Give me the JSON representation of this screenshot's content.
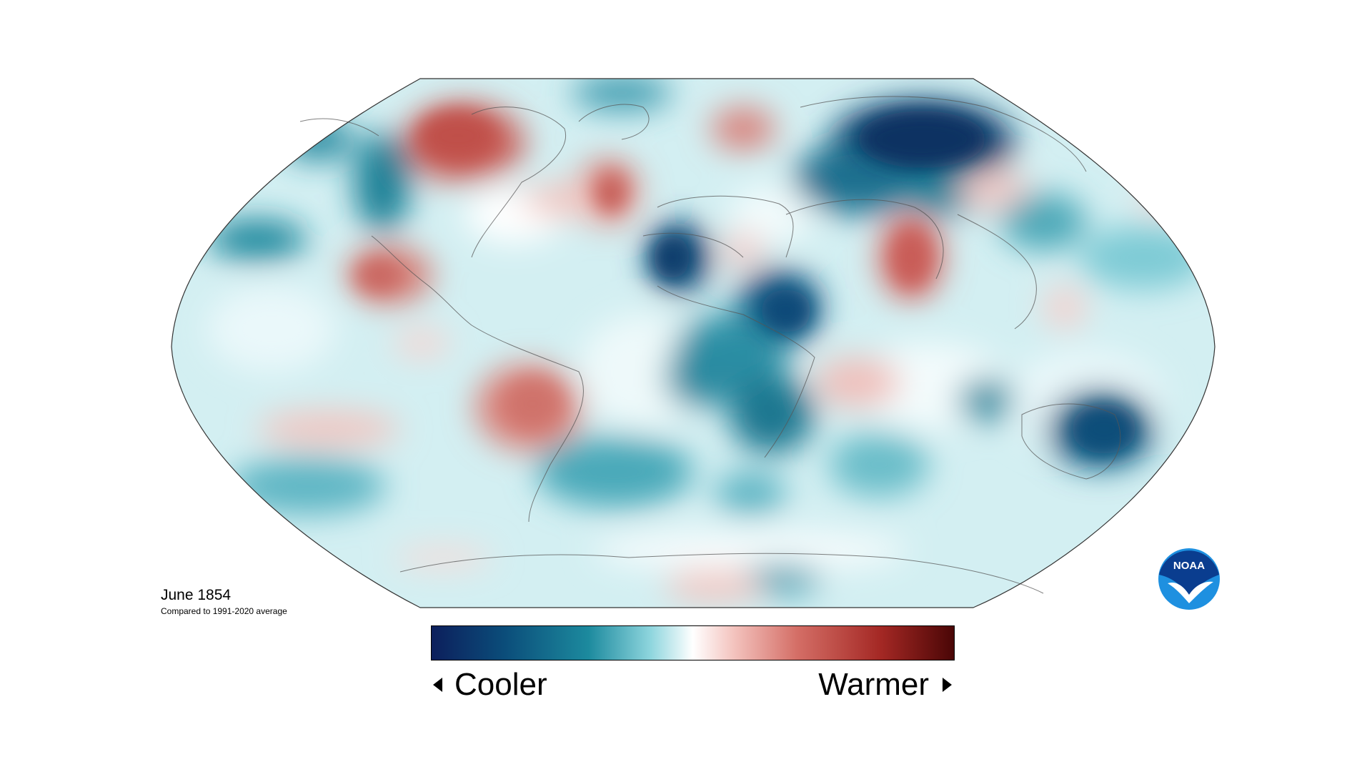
{
  "map": {
    "title": "June 1854",
    "subtitle": "Compared to 1991-2020 average",
    "projection": "Robinson",
    "variable": "temperature anomaly"
  },
  "legend": {
    "cool_label": "Cooler",
    "warm_label": "Warmer",
    "colors": [
      "#0c1f5c",
      "#0b4d7a",
      "#1c8a9e",
      "#8fd6de",
      "#ffffff",
      "#f3c2bd",
      "#d46e66",
      "#a42824",
      "#4a0606"
    ]
  },
  "logo": {
    "text": "NOAA",
    "colors": [
      "#0a3d8f",
      "#1e90e0"
    ]
  }
}
